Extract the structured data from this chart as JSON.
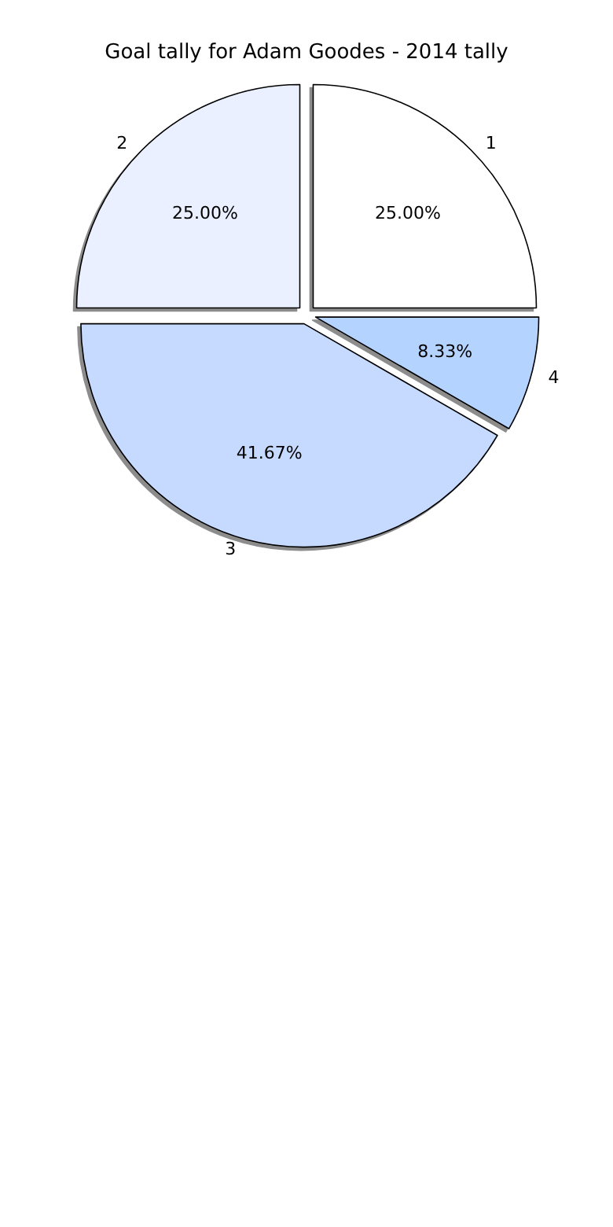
{
  "chart_data": {
    "type": "pie",
    "title": "Goal tally for Adam Goodes - 2014 tally",
    "categories": [
      "1",
      "2",
      "3",
      "4"
    ],
    "values": [
      25,
      25,
      41.67,
      8.33
    ],
    "value_labels": [
      "25.00%",
      "25.00%",
      "41.67%",
      "8.33%"
    ],
    "colors": [
      "#ffffff",
      "#eaf0ff",
      "#c6daff",
      "#b4d3ff"
    ],
    "legend": false
  }
}
